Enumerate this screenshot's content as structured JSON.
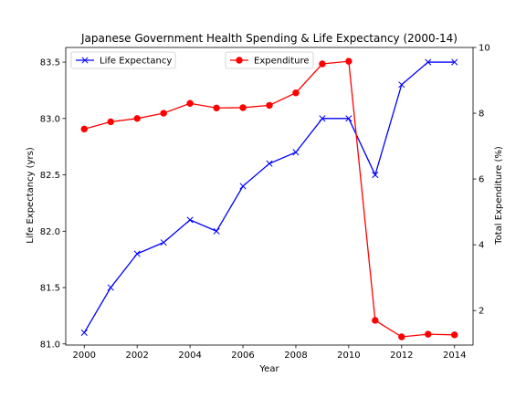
{
  "chart_data": {
    "type": "line",
    "title": "Japanese Government Health Spending & Life Expectancy (2000-14)",
    "xlabel": "Year",
    "ylabel_left": "Life Expectancy (yrs)",
    "ylabel_right": "Total Expenditure (%)",
    "x": [
      2000,
      2001,
      2002,
      2003,
      2004,
      2005,
      2006,
      2007,
      2008,
      2009,
      2010,
      2011,
      2012,
      2013,
      2014
    ],
    "xlim": [
      1999.3,
      2014.7
    ],
    "ylim_left": [
      80.99,
      83.63
    ],
    "ylim_right": [
      0.95,
      10.0
    ],
    "xticks": [
      "2000",
      "2002",
      "2004",
      "2006",
      "2008",
      "2010",
      "2012",
      "2014"
    ],
    "yticks_left": [
      "81.0",
      "81.5",
      "82.0",
      "82.5",
      "83.0",
      "83.5"
    ],
    "yticks_right": [
      "2",
      "4",
      "6",
      "8",
      "10"
    ],
    "grid": false,
    "series": [
      {
        "name": "Life Expectancy",
        "axis": "left",
        "color": "#0000ff",
        "marker": "x",
        "legend_position": "upper-left",
        "values": [
          81.1,
          81.5,
          81.8,
          81.9,
          82.1,
          82.0,
          82.4,
          82.6,
          82.7,
          83.0,
          83.0,
          82.5,
          83.3,
          83.5,
          83.5
        ]
      },
      {
        "name": "Expenditure",
        "axis": "right",
        "color": "#ff0000",
        "marker": "o",
        "legend_position": "upper-center",
        "values": [
          7.52,
          7.74,
          7.84,
          8.0,
          8.3,
          8.16,
          8.17,
          8.24,
          8.62,
          9.5,
          9.58,
          1.7,
          1.2,
          1.28,
          1.26
        ]
      }
    ]
  }
}
